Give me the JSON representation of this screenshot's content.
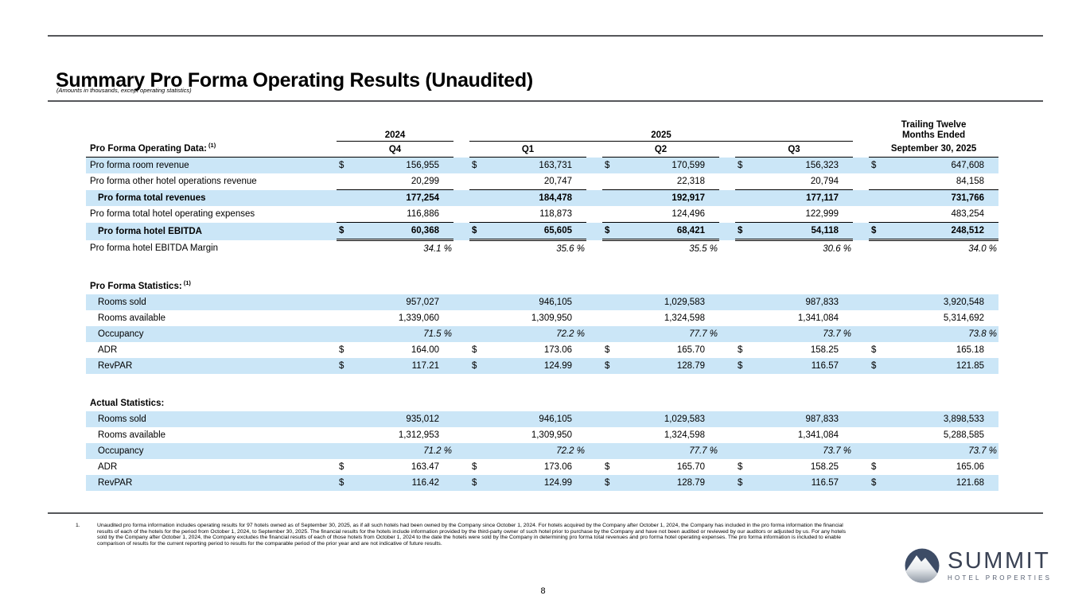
{
  "page": {
    "title": "Summary Pro Forma Operating Results (Unaudited)",
    "subtitle": "(Amounts in thousands, except operating statistics)",
    "page_number": "8"
  },
  "colors": {
    "row_highlight": "#cbe6f7",
    "rule": "#55575a",
    "logo_navy": "#3d4c66"
  },
  "table": {
    "year_groups": [
      {
        "label": "2024",
        "span_columns": 1
      },
      {
        "label": "2025",
        "span_columns": 3
      }
    ],
    "ttm_lines": [
      "Trailing Twelve",
      "Months Ended"
    ],
    "column_headers": [
      "Q4",
      "Q1",
      "Q2",
      "Q3",
      "September 30, 2025"
    ],
    "row_header": {
      "label": "Pro Forma Operating Data:",
      "sup": "(1)"
    },
    "sections": [
      {
        "title": "",
        "sup": "",
        "rows": [
          {
            "label": "Pro forma room revenue",
            "dollar": true,
            "shade": true,
            "values": [
              "156,955",
              "163,731",
              "170,599",
              "156,323",
              "647,608"
            ]
          },
          {
            "label": "Pro forma other hotel operations revenue",
            "rule_below": true,
            "values": [
              "20,299",
              "20,747",
              "22,318",
              "20,794",
              "84,158"
            ]
          },
          {
            "label": "Pro forma total revenues",
            "bold": true,
            "indent": true,
            "shade": true,
            "values": [
              "177,254",
              "184,478",
              "192,917",
              "177,117",
              "731,766"
            ]
          },
          {
            "label": "Pro forma total hotel operating expenses",
            "rule_below": true,
            "values": [
              "116,886",
              "118,873",
              "124,496",
              "122,999",
              "483,254"
            ]
          },
          {
            "label": "Pro forma hotel EBITDA",
            "bold": true,
            "indent": true,
            "shade": true,
            "dollar": true,
            "double_below": true,
            "values": [
              "60,368",
              "65,605",
              "68,421",
              "54,118",
              "248,512"
            ]
          },
          {
            "label": "Pro forma hotel EBITDA Margin",
            "italic": true,
            "values": [
              "34.1 %",
              "35.6 %",
              "35.5 %",
              "30.6 %",
              "34.0 %"
            ]
          }
        ]
      },
      {
        "title": "Pro Forma Statistics:",
        "sup": "(1)",
        "rows": [
          {
            "label": "Rooms sold",
            "indent": true,
            "shade": true,
            "values": [
              "957,027",
              "946,105",
              "1,029,583",
              "987,833",
              "3,920,548"
            ]
          },
          {
            "label": "Rooms available",
            "indent": true,
            "values": [
              "1,339,060",
              "1,309,950",
              "1,324,598",
              "1,341,084",
              "5,314,692"
            ]
          },
          {
            "label": "Occupancy",
            "indent": true,
            "shade": true,
            "italic": true,
            "values": [
              "71.5 %",
              "72.2 %",
              "77.7 %",
              "73.7 %",
              "73.8 %"
            ]
          },
          {
            "label": "ADR",
            "indent": true,
            "dollar": true,
            "values": [
              "164.00",
              "173.06",
              "165.70",
              "158.25",
              "165.18"
            ]
          },
          {
            "label": "RevPAR",
            "indent": true,
            "shade": true,
            "dollar": true,
            "values": [
              "117.21",
              "124.99",
              "128.79",
              "116.57",
              "121.85"
            ]
          }
        ]
      },
      {
        "title": "Actual Statistics:",
        "sup": "",
        "rows": [
          {
            "label": "Rooms sold",
            "indent": true,
            "shade": true,
            "values": [
              "935,012",
              "946,105",
              "1,029,583",
              "987,833",
              "3,898,533"
            ]
          },
          {
            "label": "Rooms available",
            "indent": true,
            "values": [
              "1,312,953",
              "1,309,950",
              "1,324,598",
              "1,341,084",
              "5,288,585"
            ]
          },
          {
            "label": "Occupancy",
            "indent": true,
            "shade": true,
            "italic": true,
            "values": [
              "71.2 %",
              "72.2 %",
              "77.7 %",
              "73.7 %",
              "73.7 %"
            ]
          },
          {
            "label": "ADR",
            "indent": true,
            "dollar": true,
            "values": [
              "163.47",
              "173.06",
              "165.70",
              "158.25",
              "165.06"
            ]
          },
          {
            "label": "RevPAR",
            "indent": true,
            "shade": true,
            "dollar": true,
            "values": [
              "116.42",
              "124.99",
              "128.79",
              "116.57",
              "121.68"
            ]
          }
        ]
      }
    ]
  },
  "footnote": {
    "number": "1.",
    "text": "Unaudited pro forma information includes operating results for 97 hotels owned as of September 30, 2025, as if all such hotels had been owned by the Company since October 1, 2024. For hotels acquired by the Company after October 1, 2024, the Company has included in the pro forma information the financial results of each of the hotels for the period from October 1, 2024, to September 30, 2025. The financial results for the hotels include information provided by the third-party owner of such hotel prior to purchase by the Company and have not been audited or reviewed by our auditors or adjusted by us. For any hotels sold by the Company after October 1, 2024, the Company excludes the financial results of each of those hotels from October 1, 2024 to the date the hotels were sold by the Company in determining pro forma total revenues and pro forma hotel operating expenses. The pro forma information is included to enable comparison of results for the current reporting period to results for the comparable period of the prior year and are not indicative of future results."
  },
  "logo": {
    "name": "SUMMIT",
    "tagline": "HOTEL PROPERTIES",
    "icon": "mountain-circle-icon"
  }
}
